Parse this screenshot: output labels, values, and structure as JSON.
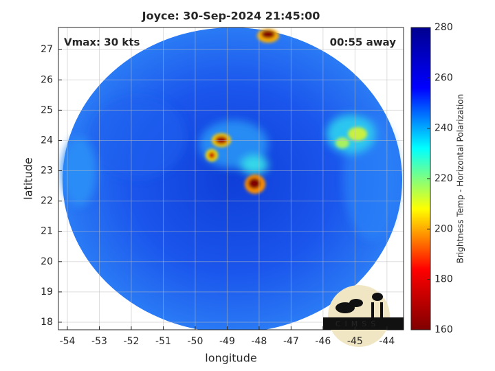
{
  "chart_data": {
    "type": "heatmap",
    "title": "Joyce: 30-Sep-2024 21:45:00",
    "xlabel": "longitude",
    "ylabel": "latitude",
    "annotations": [
      "Vmax: 30 kts",
      "00:55 away"
    ],
    "logo": "CIMSS",
    "xlim": [
      -54.28,
      -43.48
    ],
    "xticks": [
      -54,
      -53,
      -52,
      -51,
      -50,
      -49,
      -48,
      -47,
      -46,
      -45,
      -44
    ],
    "ylim": [
      17.75,
      27.73
    ],
    "yticks": [
      18,
      19,
      20,
      21,
      22,
      23,
      24,
      25,
      26,
      27
    ],
    "grid": true,
    "colormap": "jet",
    "colorbar": {
      "label": "Brightness Temp - Horizontal Polarization",
      "lim": [
        160,
        280
      ],
      "ticks": [
        160,
        180,
        200,
        220,
        240,
        260,
        280
      ]
    }
  }
}
